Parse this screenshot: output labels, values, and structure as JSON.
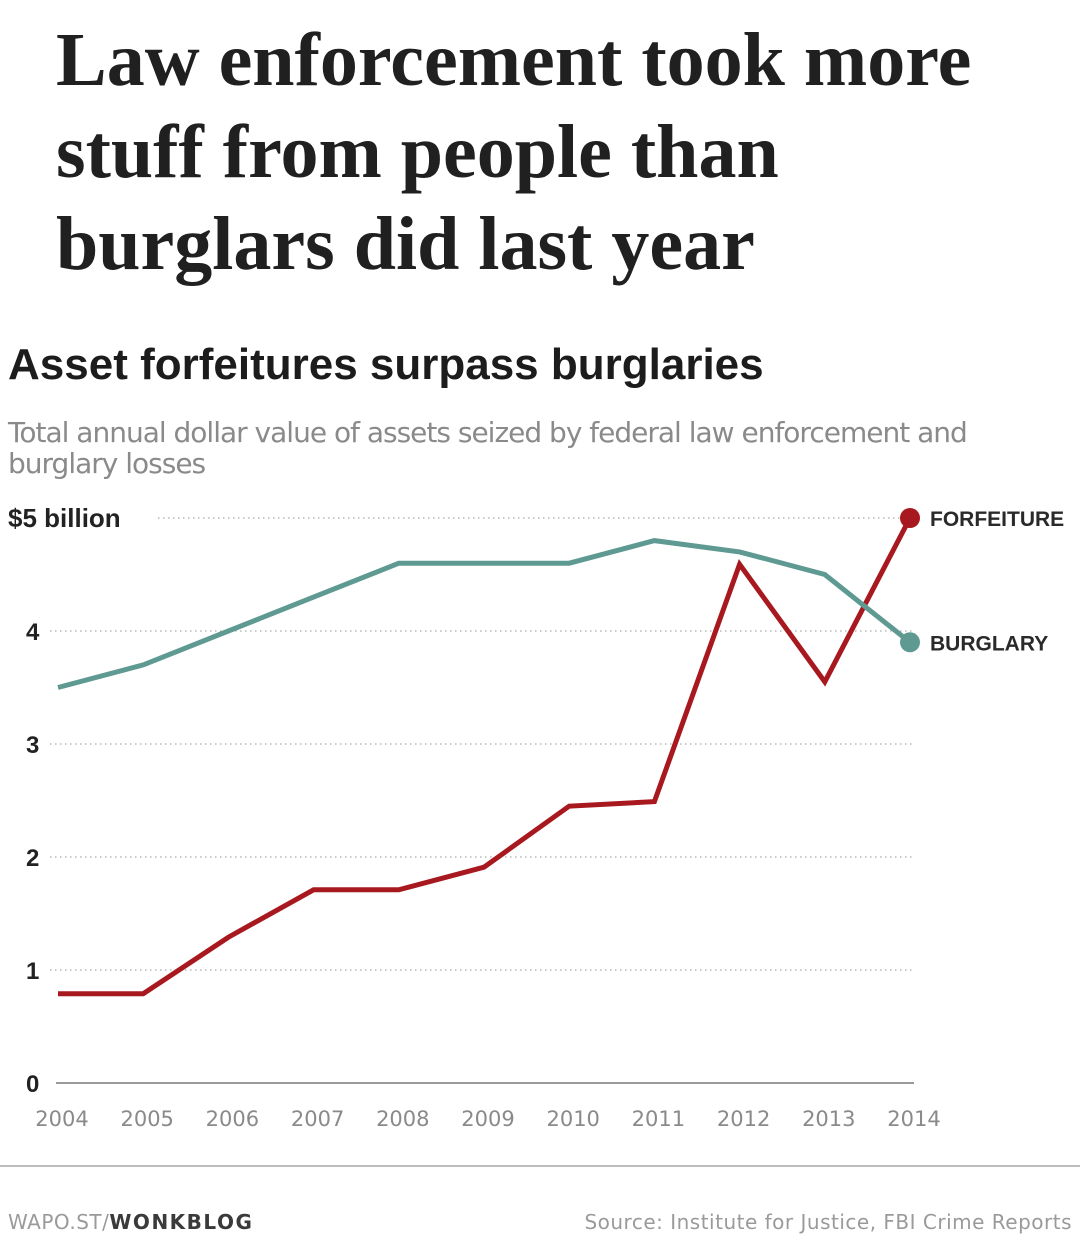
{
  "headline": "Law enforcement took more stuff from people than burglars did last year",
  "chart_data": {
    "type": "line",
    "title": "Asset forfeitures surpass burglaries",
    "subtitle": "Total annual dollar value of assets seized by federal law enforcement and burglary losses",
    "x": [
      "2004",
      "2005",
      "2006",
      "2007",
      "2008",
      "2009",
      "2010",
      "2011",
      "2012",
      "2013",
      "2014"
    ],
    "ylim": [
      0,
      5
    ],
    "yticks": [
      {
        "value": 0,
        "label": "0"
      },
      {
        "value": 1,
        "label": "1"
      },
      {
        "value": 2,
        "label": "2"
      },
      {
        "value": 3,
        "label": "3"
      },
      {
        "value": 4,
        "label": "4"
      },
      {
        "value": 5,
        "label": "$5 billion"
      }
    ],
    "grid": true,
    "series": [
      {
        "name": "FORFEITURE",
        "color": "#a8191f",
        "values": [
          0.79,
          0.79,
          1.29,
          1.71,
          1.71,
          1.91,
          2.45,
          2.49,
          4.59,
          3.55,
          5.0
        ]
      },
      {
        "name": "BURGLARY",
        "color": "#5e9a92",
        "values": [
          3.5,
          3.7,
          4.0,
          4.3,
          4.6,
          4.6,
          4.6,
          4.8,
          4.7,
          4.5,
          3.9
        ]
      }
    ]
  },
  "footer": {
    "site_prefix": "WAPO.ST/",
    "site_brand": "WONKBLOG",
    "source": "Source: Institute for Justice, FBI Crime Reports"
  }
}
